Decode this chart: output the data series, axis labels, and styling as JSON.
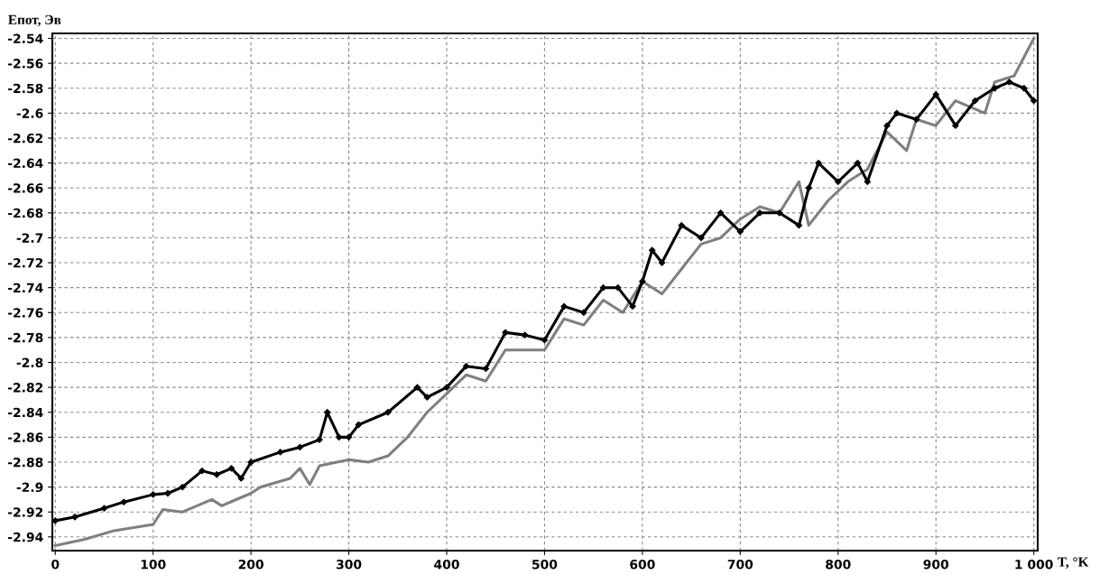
{
  "chart_data": {
    "type": "line",
    "xlabel": "T, °K",
    "ylabel": "Епот, Эв",
    "xlim": [
      -3,
      1004
    ],
    "ylim": [
      -2.951,
      -2.536
    ],
    "xticks": [
      0,
      100,
      200,
      300,
      400,
      500,
      600,
      700,
      800,
      900,
      {
        "value": 1000,
        "label": "1 000"
      }
    ],
    "yticks": [
      {
        "value": -2.94,
        "label": "-2.94"
      },
      {
        "value": -2.92,
        "label": "-2.92"
      },
      {
        "value": -2.9,
        "label": "-2.9"
      },
      {
        "value": -2.88,
        "label": "-2.88"
      },
      {
        "value": -2.86,
        "label": "-2.86"
      },
      {
        "value": -2.84,
        "label": "-2.84"
      },
      {
        "value": -2.82,
        "label": "-2.82"
      },
      {
        "value": -2.8,
        "label": "-2.8"
      },
      {
        "value": -2.78,
        "label": "-2.78"
      },
      {
        "value": -2.76,
        "label": "-2.76"
      },
      {
        "value": -2.74,
        "label": "-2.74"
      },
      {
        "value": -2.72,
        "label": "-2.72"
      },
      {
        "value": -2.7,
        "label": "-2.7"
      },
      {
        "value": -2.68,
        "label": "-2.68"
      },
      {
        "value": -2.66,
        "label": "-2.66"
      },
      {
        "value": -2.64,
        "label": "-2.64"
      },
      {
        "value": -2.62,
        "label": "-2.62"
      },
      {
        "value": -2.6,
        "label": "-2.6"
      },
      {
        "value": -2.58,
        "label": "-2.58"
      },
      {
        "value": -2.56,
        "label": "-2.56"
      },
      {
        "value": -2.54,
        "label": "-2.54"
      }
    ],
    "grid": true,
    "line_style": "solid",
    "series": [
      {
        "color": "#7f7f7f",
        "x": [
          0,
          30,
          60,
          100,
          110,
          130,
          160,
          170,
          200,
          210,
          240,
          250,
          260,
          270,
          300,
          320,
          340,
          360,
          380,
          400,
          420,
          440,
          460,
          480,
          500,
          520,
          540,
          560,
          580,
          600,
          620,
          640,
          660,
          680,
          700,
          720,
          740,
          760,
          770,
          790,
          810,
          830,
          850,
          870,
          880,
          900,
          920,
          950,
          960,
          980,
          1000
        ],
        "values": [
          -2.947,
          -2.942,
          -2.935,
          -2.93,
          -2.918,
          -2.92,
          -2.91,
          -2.915,
          -2.905,
          -2.9,
          -2.893,
          -2.885,
          -2.898,
          -2.883,
          -2.878,
          -2.88,
          -2.875,
          -2.86,
          -2.84,
          -2.825,
          -2.81,
          -2.815,
          -2.79,
          -2.79,
          -2.79,
          -2.765,
          -2.77,
          -2.75,
          -2.76,
          -2.735,
          -2.745,
          -2.725,
          -2.705,
          -2.7,
          -2.685,
          -2.675,
          -2.68,
          -2.655,
          -2.69,
          -2.67,
          -2.655,
          -2.645,
          -2.615,
          -2.63,
          -2.605,
          -2.61,
          -2.59,
          -2.6,
          -2.575,
          -2.57,
          -2.54
        ]
      },
      {
        "color": "#000000",
        "marker": "diamond",
        "x": [
          0,
          20,
          50,
          70,
          100,
          115,
          130,
          150,
          165,
          180,
          190,
          200,
          230,
          250,
          270,
          278,
          290,
          300,
          310,
          340,
          370,
          380,
          400,
          420,
          440,
          460,
          480,
          500,
          520,
          540,
          560,
          575,
          590,
          600,
          610,
          620,
          640,
          660,
          680,
          700,
          720,
          740,
          760,
          770,
          780,
          800,
          820,
          830,
          850,
          860,
          880,
          900,
          920,
          940,
          960,
          975,
          990,
          1000
        ],
        "values": [
          -2.927,
          -2.924,
          -2.917,
          -2.912,
          -2.906,
          -2.905,
          -2.9,
          -2.887,
          -2.89,
          -2.885,
          -2.893,
          -2.88,
          -2.872,
          -2.868,
          -2.862,
          -2.84,
          -2.86,
          -2.86,
          -2.85,
          -2.84,
          -2.82,
          -2.828,
          -2.82,
          -2.803,
          -2.805,
          -2.776,
          -2.778,
          -2.782,
          -2.755,
          -2.76,
          -2.74,
          -2.74,
          -2.755,
          -2.735,
          -2.71,
          -2.72,
          -2.69,
          -2.7,
          -2.68,
          -2.695,
          -2.68,
          -2.68,
          -2.69,
          -2.66,
          -2.64,
          -2.655,
          -2.64,
          -2.655,
          -2.61,
          -2.6,
          -2.605,
          -2.585,
          -2.61,
          -2.59,
          -2.58,
          -2.575,
          -2.58,
          -2.59
        ]
      }
    ]
  }
}
